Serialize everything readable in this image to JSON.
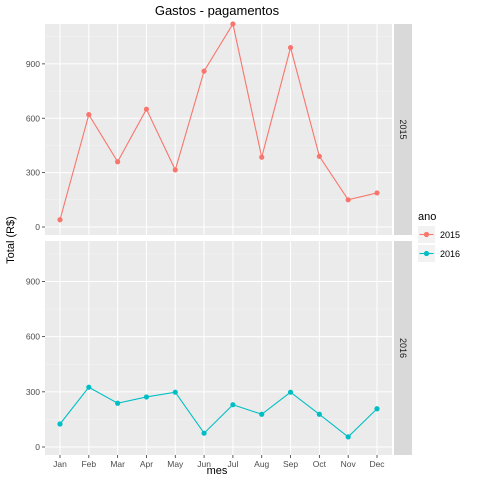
{
  "chart_data": {
    "type": "line",
    "title": "Gastos - pagamentos",
    "xlabel": "mes",
    "ylabel": "Total (R$)",
    "categories": [
      "Jan",
      "Feb",
      "Mar",
      "Apr",
      "May",
      "Jun",
      "Jul",
      "Aug",
      "Sep",
      "Oct",
      "Nov",
      "Dec"
    ],
    "ylim": [
      0,
      1120
    ],
    "yticks": [
      0,
      300,
      600,
      900
    ],
    "grid": true,
    "facet": "rows",
    "legend": {
      "title": "ano",
      "placement": "right"
    },
    "series": [
      {
        "name": "2015",
        "color": "#F8766D",
        "values": [
          40,
          620,
          360,
          650,
          315,
          860,
          1120,
          385,
          990,
          390,
          150,
          188
        ]
      },
      {
        "name": "2016",
        "color": "#00BFC4",
        "values": [
          125,
          325,
          238,
          272,
          298,
          75,
          230,
          178,
          298,
          178,
          55,
          208
        ]
      }
    ]
  }
}
